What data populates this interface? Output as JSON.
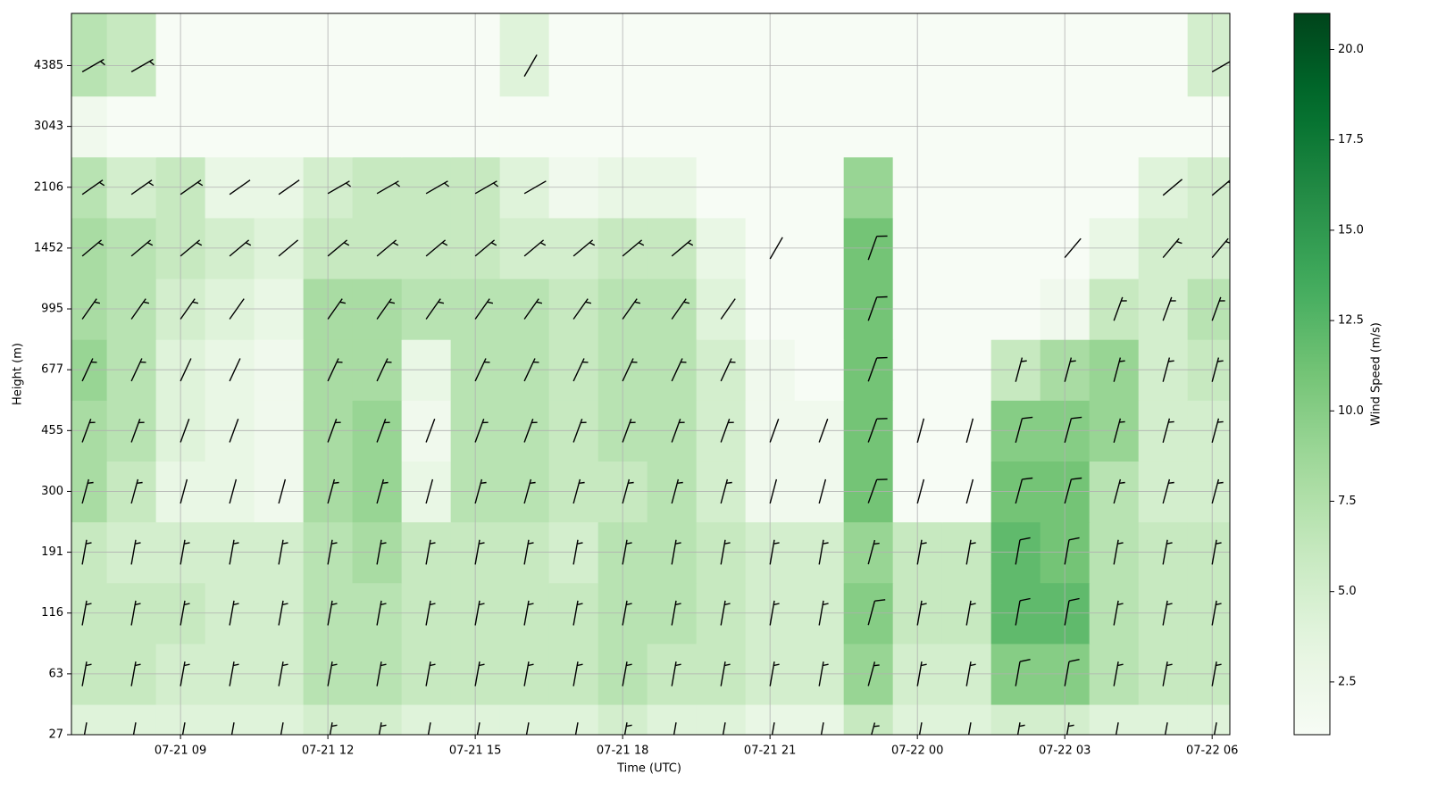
{
  "chart_data": {
    "type": "heatmap",
    "xlabel": "Time (UTC)",
    "ylabel": "Height (m)",
    "colorbar_label": "Wind Speed (m/s)",
    "x": [
      7,
      8,
      9,
      10,
      11,
      12,
      13,
      14,
      15,
      16,
      17,
      18,
      19,
      20,
      21,
      22,
      23,
      24,
      25,
      26,
      27,
      28,
      29,
      30
    ],
    "y": [
      27,
      63,
      116,
      191,
      300,
      455,
      677,
      995,
      1452,
      2106,
      3043,
      4385
    ],
    "xlim": [
      6.78,
      30.36
    ],
    "xticks": [
      {
        "value": 9,
        "label": "07-21 09"
      },
      {
        "value": 12,
        "label": "07-21 12"
      },
      {
        "value": 15,
        "label": "07-21 15"
      },
      {
        "value": 18,
        "label": "07-21 18"
      },
      {
        "value": 21,
        "label": "07-21 21"
      },
      {
        "value": 24,
        "label": "07-22 00"
      },
      {
        "value": 27,
        "label": "07-22 03"
      },
      {
        "value": 30,
        "label": "07-22 06"
      }
    ],
    "ylim": [
      27,
      6000
    ],
    "yticks": [
      27,
      63,
      116,
      191,
      300,
      455,
      677,
      995,
      1452,
      2106,
      3043,
      4385
    ],
    "clim": [
      1.04,
      21.0
    ],
    "cticks": [
      {
        "value": 2.5,
        "label": "2.5"
      },
      {
        "value": 5,
        "label": "5.0"
      },
      {
        "value": 7.5,
        "label": "7.5"
      },
      {
        "value": 10,
        "label": "10.0"
      },
      {
        "value": 12.5,
        "label": "12.5"
      },
      {
        "value": 15,
        "label": "15.0"
      },
      {
        "value": 17.5,
        "label": "17.5"
      },
      {
        "value": 20,
        "label": "20.0"
      }
    ],
    "colormap": [
      "#f7fcf5",
      "#e5f5e0",
      "#c7e9c0",
      "#a1d99b",
      "#74c476",
      "#41ab5d",
      "#238b45",
      "#006d2c",
      "#00441b"
    ],
    "grid": true,
    "barb_color": "#000000",
    "speed": [
      [
        4,
        4,
        4,
        4,
        4,
        5,
        5,
        4,
        4,
        4,
        4,
        5,
        4,
        4,
        3,
        3,
        6,
        4,
        4,
        5,
        5,
        4,
        4,
        4
      ],
      [
        6,
        6,
        5,
        5,
        5,
        7,
        7,
        6,
        6,
        6,
        6,
        7,
        6,
        6,
        5,
        5,
        9,
        5,
        5,
        10,
        10,
        7,
        6,
        6
      ],
      [
        6,
        6,
        6,
        5,
        5,
        7,
        7,
        6,
        6,
        6,
        6,
        7,
        7,
        6,
        5,
        5,
        10,
        6,
        6,
        12,
        12,
        7,
        6,
        6
      ],
      [
        6,
        5,
        5,
        5,
        5,
        7,
        8,
        6,
        6,
        6,
        5,
        7,
        7,
        6,
        5,
        5,
        9,
        6,
        6,
        12,
        11,
        7,
        6,
        6
      ],
      [
        8,
        6,
        3,
        3,
        2,
        8,
        9,
        3,
        7,
        7,
        6,
        6,
        7,
        5,
        2,
        2,
        11,
        1,
        1,
        11,
        11,
        7,
        5,
        5
      ],
      [
        8,
        7,
        4,
        3,
        2,
        8,
        9,
        2,
        7,
        7,
        6,
        7,
        7,
        5,
        2,
        2,
        11,
        1,
        1,
        10,
        10,
        9,
        5,
        5
      ],
      [
        9,
        7,
        4,
        3,
        2,
        8,
        8,
        3,
        7,
        7,
        6,
        7,
        7,
        5,
        2,
        1,
        11,
        1,
        1,
        6,
        8,
        9,
        5,
        6
      ],
      [
        8,
        7,
        5,
        4,
        3,
        8,
        8,
        7,
        7,
        7,
        6,
        7,
        7,
        4,
        1,
        1,
        11,
        1,
        1,
        1,
        2,
        6,
        5,
        7
      ],
      [
        8,
        7,
        6,
        5,
        4,
        6,
        6,
        6,
        6,
        5,
        5,
        6,
        6,
        3,
        1,
        1,
        11,
        1,
        1,
        1,
        1,
        3,
        5,
        5
      ],
      [
        7,
        5,
        6,
        3,
        3,
        5,
        6,
        6,
        6,
        4,
        2,
        3,
        3,
        1,
        1,
        1,
        9,
        1,
        1,
        1,
        1,
        1,
        4,
        5
      ],
      [
        2,
        1,
        1,
        1,
        1,
        1,
        1,
        1,
        1,
        1,
        1,
        1,
        1,
        1,
        1,
        1,
        1,
        1,
        1,
        1,
        1,
        1,
        1,
        1
      ],
      [
        7,
        6,
        1,
        1,
        1,
        1,
        1,
        1,
        1,
        4,
        1,
        1,
        1,
        1,
        1,
        1,
        1,
        1,
        1,
        1,
        1,
        1,
        1,
        5
      ]
    ],
    "direction": [
      [
        10,
        10,
        10,
        10,
        10,
        10,
        10,
        10,
        10,
        10,
        10,
        10,
        10,
        10,
        10,
        10,
        15,
        10,
        10,
        10,
        10,
        10,
        10,
        10
      ],
      [
        10,
        10,
        10,
        10,
        10,
        10,
        10,
        10,
        10,
        10,
        10,
        10,
        10,
        10,
        10,
        10,
        15,
        10,
        10,
        10,
        10,
        10,
        10,
        10
      ],
      [
        10,
        10,
        10,
        10,
        10,
        10,
        10,
        10,
        10,
        10,
        10,
        10,
        10,
        10,
        10,
        10,
        15,
        10,
        10,
        10,
        10,
        10,
        10,
        10
      ],
      [
        10,
        10,
        10,
        10,
        10,
        10,
        10,
        10,
        10,
        10,
        10,
        10,
        10,
        10,
        10,
        10,
        15,
        10,
        10,
        10,
        10,
        10,
        10,
        10
      ],
      [
        15,
        15,
        15,
        15,
        15,
        15,
        15,
        15,
        15,
        15,
        15,
        15,
        15,
        15,
        15,
        15,
        20,
        15,
        15,
        15,
        15,
        15,
        15,
        15
      ],
      [
        20,
        20,
        20,
        20,
        null,
        20,
        20,
        20,
        20,
        20,
        20,
        20,
        20,
        20,
        20,
        20,
        20,
        15,
        15,
        15,
        15,
        15,
        15,
        15
      ],
      [
        25,
        25,
        25,
        25,
        null,
        25,
        25,
        null,
        25,
        25,
        25,
        25,
        25,
        25,
        null,
        null,
        20,
        null,
        null,
        15,
        15,
        15,
        15,
        15
      ],
      [
        35,
        35,
        35,
        35,
        null,
        35,
        35,
        35,
        35,
        35,
        35,
        35,
        35,
        35,
        null,
        null,
        20,
        null,
        null,
        null,
        null,
        20,
        20,
        20
      ],
      [
        50,
        50,
        50,
        50,
        50,
        50,
        50,
        50,
        50,
        50,
        50,
        50,
        50,
        null,
        30,
        null,
        20,
        null,
        null,
        null,
        40,
        null,
        40,
        40
      ],
      [
        55,
        55,
        55,
        55,
        55,
        60,
        60,
        60,
        60,
        60,
        null,
        null,
        null,
        null,
        null,
        null,
        null,
        null,
        null,
        null,
        null,
        null,
        50,
        50
      ],
      [
        null,
        null,
        null,
        null,
        null,
        null,
        null,
        null,
        null,
        null,
        null,
        null,
        null,
        null,
        null,
        null,
        null,
        null,
        null,
        null,
        null,
        null,
        null,
        null
      ],
      [
        60,
        60,
        null,
        null,
        null,
        null,
        null,
        null,
        null,
        30,
        null,
        null,
        null,
        null,
        null,
        null,
        null,
        null,
        null,
        null,
        null,
        null,
        null,
        60
      ]
    ]
  }
}
